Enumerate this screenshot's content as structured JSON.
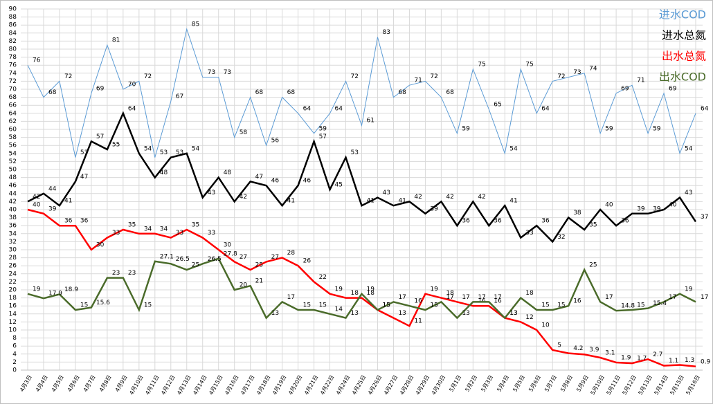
{
  "chart_data": {
    "type": "line",
    "categories": [
      "4月3日",
      "4月4日",
      "4月5日",
      "4月6日",
      "4月7日",
      "4月8日",
      "4月9日",
      "4月10日",
      "4月11日",
      "4月12日",
      "4月13日",
      "4月14日",
      "4月15日",
      "4月16日",
      "4月17日",
      "4月18日",
      "4月19日",
      "4月20日",
      "4月21日",
      "4月22日",
      "4月24日",
      "4月25日",
      "4月26日",
      "4月27日",
      "4月28日",
      "4月29日",
      "4月30日",
      "5月1日",
      "5月2日",
      "5月3日",
      "5月4日",
      "5月5日",
      "5月6日",
      "5月7日",
      "5月8日",
      "5月9日",
      "5月10日",
      "5月11日",
      "5月12日",
      "5月13日",
      "5月14日",
      "5月15日",
      "5月16日"
    ],
    "series": [
      {
        "name": "进水COD",
        "color": "#5b9bd5",
        "values": [
          76,
          68,
          72,
          53,
          69,
          81,
          70,
          72,
          53,
          67,
          85,
          73,
          73,
          58,
          68,
          56,
          68,
          64,
          59,
          64,
          72,
          61,
          83,
          68,
          71,
          72,
          68,
          59,
          75,
          65,
          54,
          75,
          64,
          72,
          73,
          74,
          59,
          69,
          71,
          59,
          69,
          54,
          64
        ]
      },
      {
        "name": "进水总氮",
        "color": "#000000",
        "values": [
          42,
          44,
          41,
          47,
          57,
          55,
          64,
          54,
          48,
          53,
          54,
          43,
          48,
          42,
          47,
          46,
          41,
          46,
          57,
          45,
          53,
          41,
          43,
          41,
          42,
          39,
          42,
          36,
          42,
          36,
          41,
          33,
          36,
          32,
          38,
          35,
          40,
          36,
          39,
          39,
          40,
          43,
          37
        ]
      },
      {
        "name": "出水总氮",
        "color": "#ff0000",
        "values": [
          40,
          39,
          36,
          36,
          30,
          33,
          35,
          34,
          34,
          33,
          35,
          33,
          30,
          27,
          25,
          27,
          28,
          26,
          22,
          19,
          18,
          18,
          15,
          13,
          11,
          19,
          18,
          17,
          16,
          16,
          13,
          12,
          10,
          5,
          4.2,
          3.9,
          3.1,
          1.9,
          1.7,
          2.7,
          1.1,
          1.3,
          0.9
        ]
      },
      {
        "name": "出水COD",
        "color": "#4a6b2a",
        "values": [
          19,
          17.9,
          18.9,
          15,
          15.6,
          23,
          23,
          15,
          27.1,
          26.5,
          25,
          26.5,
          27.8,
          20,
          21,
          13,
          17,
          15,
          15,
          14,
          13,
          19,
          15,
          17,
          16,
          15,
          17,
          13,
          17,
          17,
          13,
          18,
          15,
          15,
          16,
          25,
          17,
          14.8,
          15,
          15.4,
          17,
          19,
          17
        ]
      }
    ],
    "ylim": [
      0,
      90
    ],
    "yticks": [
      0,
      2,
      4,
      6,
      8,
      10,
      12,
      14,
      16,
      18,
      20,
      22,
      24,
      26,
      28,
      30,
      32,
      34,
      36,
      38,
      40,
      42,
      44,
      46,
      48,
      50,
      52,
      54,
      56,
      58,
      60,
      62,
      64,
      66,
      68,
      70,
      72,
      74,
      76,
      78,
      80,
      82,
      84,
      86,
      88,
      90
    ],
    "grid": true
  }
}
